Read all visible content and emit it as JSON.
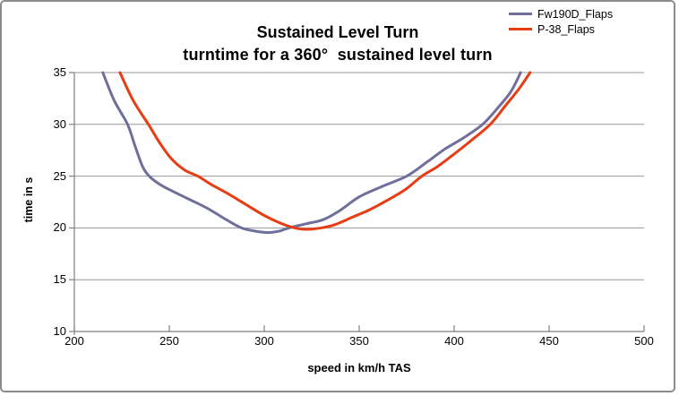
{
  "colors": {
    "frame_border": "#8C8C8C",
    "gridline": "#979797",
    "axis_line": "#7F7F7F",
    "text": "#000000"
  },
  "chart_data": {
    "type": "line",
    "title": "Sustained Level Turn",
    "subtitle": "turntime for a 360°  sustained level turn",
    "xlabel": "speed in km/h TAS",
    "ylabel": "time in s",
    "xlim": [
      200,
      500
    ],
    "ylim": [
      10,
      35
    ],
    "x_ticks": [
      200,
      250,
      300,
      350,
      400,
      450,
      500
    ],
    "y_ticks": [
      10,
      15,
      20,
      25,
      30,
      35
    ],
    "grid": true,
    "legend_position": "top-right",
    "series": [
      {
        "name": "Fw190D_Flaps",
        "color": "#6F6F9B",
        "points": [
          [
            215,
            35
          ],
          [
            221,
            32.3
          ],
          [
            228,
            30
          ],
          [
            232,
            27.9
          ],
          [
            236,
            25.9
          ],
          [
            240,
            24.9
          ],
          [
            245,
            24.2
          ],
          [
            250,
            23.7
          ],
          [
            260,
            22.8
          ],
          [
            270,
            21.9
          ],
          [
            280,
            20.8
          ],
          [
            288,
            20.0
          ],
          [
            295,
            19.7
          ],
          [
            302,
            19.55
          ],
          [
            308,
            19.7
          ],
          [
            313,
            20.0
          ],
          [
            322,
            20.4
          ],
          [
            331,
            20.8
          ],
          [
            340,
            21.7
          ],
          [
            350,
            23.0
          ],
          [
            362,
            24.0
          ],
          [
            375,
            25.0
          ],
          [
            386,
            26.4
          ],
          [
            395,
            27.6
          ],
          [
            405,
            28.7
          ],
          [
            415,
            30.0
          ],
          [
            423,
            31.6
          ],
          [
            430,
            33.2
          ],
          [
            435,
            35
          ]
        ]
      },
      {
        "name": "P-38_Flaps",
        "color": "#E83C14",
        "points": [
          [
            224,
            35
          ],
          [
            231,
            32.3
          ],
          [
            239,
            30
          ],
          [
            245,
            28.2
          ],
          [
            251,
            26.7
          ],
          [
            258,
            25.6
          ],
          [
            265,
            25.0
          ],
          [
            272,
            24.2
          ],
          [
            280,
            23.4
          ],
          [
            290,
            22.3
          ],
          [
            300,
            21.2
          ],
          [
            308,
            20.5
          ],
          [
            315,
            20.05
          ],
          [
            321,
            19.87
          ],
          [
            329,
            19.97
          ],
          [
            337,
            20.3
          ],
          [
            346,
            21.0
          ],
          [
            356,
            21.8
          ],
          [
            368,
            23.0
          ],
          [
            375,
            23.8
          ],
          [
            383,
            25.0
          ],
          [
            391,
            25.9
          ],
          [
            399,
            27.0
          ],
          [
            408,
            28.3
          ],
          [
            419,
            30.0
          ],
          [
            427,
            31.8
          ],
          [
            434,
            33.4
          ],
          [
            440,
            35
          ]
        ]
      }
    ]
  }
}
